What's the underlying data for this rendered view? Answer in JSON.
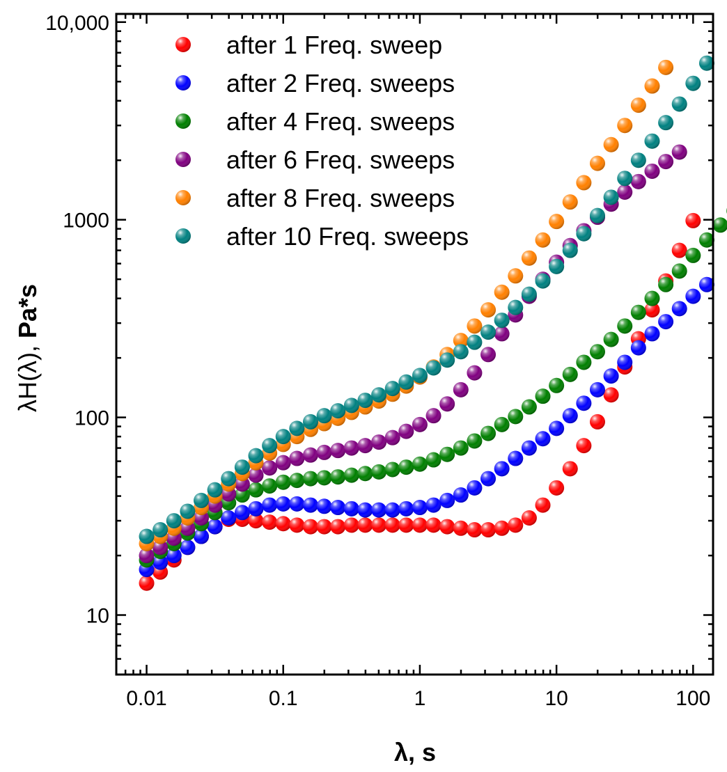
{
  "chart_data": {
    "type": "scatter",
    "title": "",
    "xlabel": "λ, s",
    "ylabel_prefix": "λH(λ), ",
    "ylabel_bold": "Pa*s",
    "xscale": "log",
    "yscale": "log",
    "xlim": [
      0.006,
      140
    ],
    "ylim": [
      5,
      11000
    ],
    "xticks": [
      {
        "value": 0.01,
        "label": "0.01"
      },
      {
        "value": 0.1,
        "label": "0.1"
      },
      {
        "value": 1,
        "label": "1"
      },
      {
        "value": 10,
        "label": "10"
      },
      {
        "value": 100,
        "label": "100"
      }
    ],
    "yticks": [
      {
        "value": 10,
        "label": "10"
      },
      {
        "value": 100,
        "label": "100"
      },
      {
        "value": 1000,
        "label": "1000"
      },
      {
        "value": 10000,
        "label": "10,000"
      }
    ],
    "legend_position": "top-left",
    "series": [
      {
        "name": "after 1 Freq. sweep",
        "color": "#ff0000",
        "y": [
          14.5,
          16.5,
          19,
          22,
          25,
          28,
          30.5,
          30.5,
          30,
          29.5,
          29,
          28.5,
          28,
          28,
          28,
          28.5,
          28.5,
          28.5,
          28.5,
          28.5,
          28.5,
          28.5,
          28,
          27.5,
          27,
          27,
          27.5,
          28.5,
          31,
          36,
          44,
          55,
          72,
          95,
          130,
          180,
          250,
          350,
          490,
          700,
          990
        ]
      },
      {
        "name": "after 2 Freq. sweeps",
        "color": "#0000ff",
        "y": [
          17,
          18.5,
          20,
          22,
          25,
          28,
          31,
          33,
          34.5,
          36,
          36.5,
          36.5,
          36,
          35.5,
          35,
          34.5,
          34,
          34,
          34,
          34.5,
          35,
          36,
          38,
          40.5,
          44,
          49,
          55,
          62,
          70,
          78,
          88,
          102,
          118,
          138,
          162,
          190,
          225,
          265,
          305,
          355,
          410,
          470
        ]
      },
      {
        "name": "after 4 Freq. sweeps",
        "color": "#007f00",
        "y": [
          19,
          21,
          23,
          26,
          29,
          33,
          37,
          40.5,
          43,
          45,
          47,
          48,
          49,
          49.5,
          50,
          51,
          52,
          53,
          54.5,
          56,
          58,
          61,
          65,
          70,
          76,
          83,
          92,
          101,
          113,
          128,
          145,
          165,
          190,
          215,
          248,
          290,
          340,
          400,
          470,
          550,
          660,
          790,
          940,
          1110
        ]
      },
      {
        "name": "after 6 Freq. sweeps",
        "color": "#800080",
        "y": [
          20,
          22,
          24.5,
          27.5,
          31,
          36,
          41,
          46,
          51,
          55.5,
          59,
          62,
          64.5,
          66.5,
          68,
          70,
          72,
          75,
          79,
          85,
          92,
          102,
          117,
          138,
          168,
          208,
          265,
          330,
          410,
          500,
          610,
          740,
          880,
          1030,
          1200,
          1380,
          1560,
          1760,
          1970,
          2200
        ]
      },
      {
        "name": "after 8 Freq. sweeps",
        "color": "#ff8000",
        "y": [
          23,
          25,
          27.5,
          31,
          35,
          40,
          46,
          52,
          59,
          66,
          73,
          80,
          87,
          93,
          99,
          106,
          113,
          121,
          131,
          144,
          160,
          180,
          208,
          245,
          290,
          350,
          430,
          520,
          640,
          790,
          980,
          1230,
          1540,
          1930,
          2400,
          3000,
          3800,
          4750,
          5900
        ]
      },
      {
        "name": "after 10 Freq. sweeps",
        "color": "#008080",
        "y": [
          25,
          27,
          30,
          33.5,
          38,
          43,
          49,
          56,
          64,
          72,
          80,
          88,
          95,
          102,
          108,
          115,
          122,
          130,
          140,
          151,
          163,
          178,
          195,
          215,
          240,
          270,
          310,
          360,
          420,
          490,
          580,
          700,
          850,
          1050,
          1300,
          1620,
          2000,
          2500,
          3100,
          3850,
          4900,
          6200
        ]
      }
    ]
  },
  "legend": {
    "items": [
      {
        "label": "after 1 Freq. sweep",
        "color": "#ff0000"
      },
      {
        "label": "after 2 Freq. sweeps",
        "color": "#0000ff"
      },
      {
        "label": "after 4 Freq. sweeps",
        "color": "#007f00"
      },
      {
        "label": "after 6 Freq. sweeps",
        "color": "#800080"
      },
      {
        "label": "after 8 Freq. sweeps",
        "color": "#ff8000"
      },
      {
        "label": "after 10 Freq. sweeps",
        "color": "#008080"
      }
    ]
  }
}
